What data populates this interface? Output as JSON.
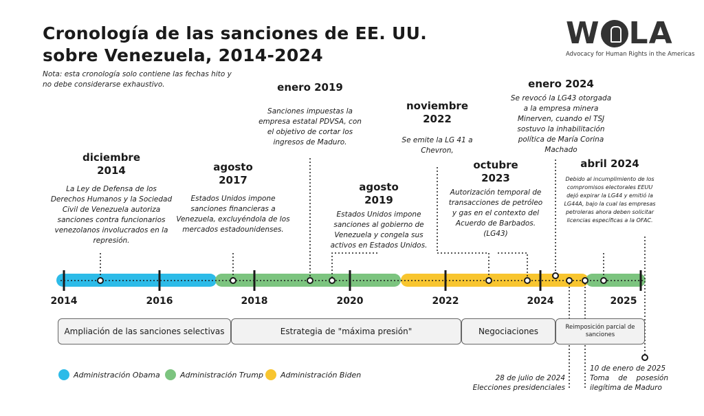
{
  "title_line1": "Cronología de las sanciones de EE. UU.",
  "title_line2": "sobre Venezuela, 2014-2024",
  "note": "Nota: esta cronología solo contiene las fechas hito y no debe considerarse exhaustivo.",
  "logo": {
    "name": "WOLA",
    "tagline": "Advocacy for Human Rights in the Americas"
  },
  "colors": {
    "obama": "#2dbbe8",
    "trump": "#7cc47f",
    "biden": "#f8c52f",
    "line": "#1a1a1a"
  },
  "years": [
    "2014",
    "2016",
    "2018",
    "2020",
    "2022",
    "2024",
    "2025"
  ],
  "events": [
    {
      "date1": "diciembre",
      "date2": "2014",
      "text": "La Ley de Defensa de los Derechos Humanos y la Sociedad Civil de Venezuela autoriza sanciones contra funcionarios venezolanos involucrados en la represión."
    },
    {
      "date1": "agosto",
      "date2": "2017",
      "text": "Estados Unidos impone sanciones financieras a Venezuela, excluyéndola de los mercados estadounidenses."
    },
    {
      "date1": "enero 2019",
      "text": "Sanciones impuestas la empresa estatal PDVSA, con el objetivo de cortar los ingresos de Maduro."
    },
    {
      "date1": "agosto",
      "date2": "2019",
      "text": "Estados Unidos impone sanciones al gobierno de Venezuela y congela sus activos en Estados Unidos."
    },
    {
      "date1": "noviembre",
      "date2": "2022",
      "text": "Se emite la LG 41 a Chevron,"
    },
    {
      "date1": "octubre",
      "date2": "2023",
      "text": "Autorización temporal de transacciones de petróleo y gas en el contexto del Acuerdo de Barbados. (LG43)"
    },
    {
      "date1": "enero 2024",
      "text": "Se revocó la LG43 otorgada a la empresa minera Minerven, cuando el TSJ sostuvo la inhabilitación política de María Corina Machado"
    },
    {
      "date1": "abril 2024",
      "text": "Debido al incumplimiento de los compromisos electorales EEUU dejó expirar la LG44 y emitió la LG44A, bajo la cual las empresas petroleras ahora deben solicitar licencias específicas a la OFAC."
    }
  ],
  "lower_events": [
    {
      "date": "28 de julio de 2024",
      "label": "Elecciones presidenciales"
    },
    {
      "date": "10 de enero de 2025",
      "label": "Toma de posesión ilegítima de Maduro"
    }
  ],
  "phases": [
    "Ampliación de las sanciones selectivas",
    "Estrategia de \"máxima presión\"",
    "Negociaciones",
    "Reimposición parcial de sanciones"
  ],
  "legend": [
    {
      "label": "Administración Obama",
      "color": "#2dbbe8"
    },
    {
      "label": "Administración Trump",
      "color": "#7cc47f"
    },
    {
      "label": "Administración Biden",
      "color": "#f8c52f"
    }
  ]
}
